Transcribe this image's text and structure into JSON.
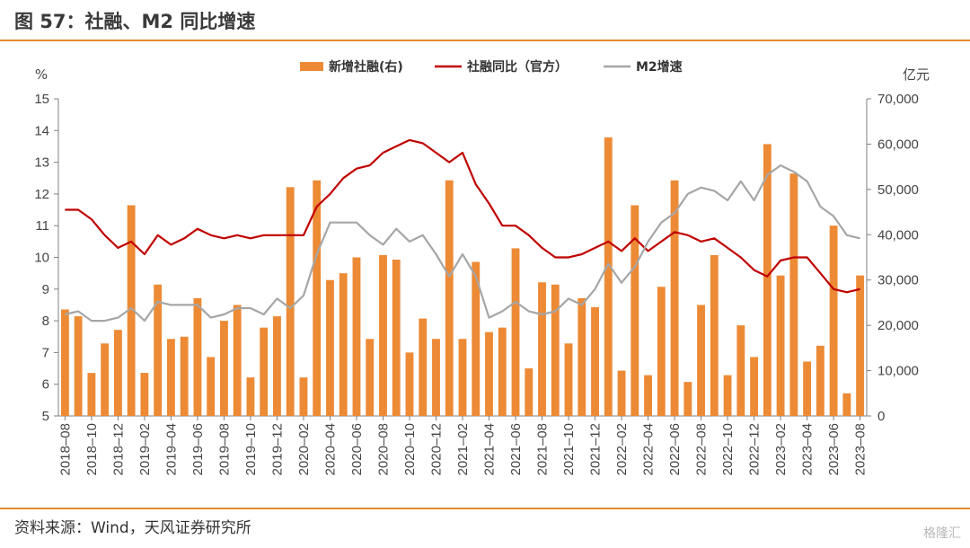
{
  "header": {
    "title": "图 57：社融、M2 同比增速"
  },
  "footer": {
    "source": "资料来源：Wind，天风证券研究所",
    "watermark": "格隆汇"
  },
  "colors": {
    "bars": "#ed8a35",
    "social_financing_line": "#c00000",
    "m2_line": "#a6a6a6",
    "accent_rule": "#e98a2e"
  },
  "chart_data": {
    "type": "bar",
    "left_unit": "%",
    "right_unit": "亿元",
    "left_ylim": [
      5,
      15
    ],
    "left_ticks": [
      "5",
      "6",
      "7",
      "8",
      "9",
      "10",
      "11",
      "12",
      "13",
      "14",
      "15"
    ],
    "right_ylim": [
      0,
      70000
    ],
    "right_ticks": [
      "0",
      "10,000",
      "20,000",
      "30,000",
      "40,000",
      "50,000",
      "60,000",
      "70,000"
    ],
    "x_tick_labels": [
      "2018–08",
      "2018–10",
      "2018–12",
      "2019–02",
      "2019–04",
      "2019–06",
      "2019–08",
      "2019–10",
      "2019–12",
      "2020–02",
      "2020–04",
      "2020–06",
      "2020–08",
      "2020–10",
      "2020–12",
      "2021–02",
      "2021–04",
      "2021–06",
      "2021–08",
      "2021–10",
      "2021–12",
      "2022–02",
      "2022–04",
      "2022–06",
      "2022–08",
      "2022–10",
      "2022–12",
      "2023–02",
      "2023–04",
      "2023–06",
      "2023–08"
    ],
    "categories": [
      "2018-08",
      "2018-09",
      "2018-10",
      "2018-11",
      "2018-12",
      "2019-01",
      "2019-02",
      "2019-03",
      "2019-04",
      "2019-05",
      "2019-06",
      "2019-07",
      "2019-08",
      "2019-09",
      "2019-10",
      "2019-11",
      "2019-12",
      "2020-01",
      "2020-02",
      "2020-03",
      "2020-04",
      "2020-05",
      "2020-06",
      "2020-07",
      "2020-08",
      "2020-09",
      "2020-10",
      "2020-11",
      "2020-12",
      "2021-01",
      "2021-02",
      "2021-03",
      "2021-04",
      "2021-05",
      "2021-06",
      "2021-07",
      "2021-08",
      "2021-09",
      "2021-10",
      "2021-11",
      "2021-12",
      "2022-01",
      "2022-02",
      "2022-03",
      "2022-04",
      "2022-05",
      "2022-06",
      "2022-07",
      "2022-08",
      "2022-09",
      "2022-10",
      "2022-11",
      "2022-12",
      "2023-01",
      "2023-02",
      "2023-03",
      "2023-04",
      "2023-05",
      "2023-06",
      "2023-07",
      "2023-08"
    ],
    "series": [
      {
        "name": "新增社融(右)",
        "type": "bar",
        "axis": "right",
        "values": [
          23500,
          22000,
          9500,
          16000,
          19000,
          46500,
          9500,
          29000,
          17000,
          17500,
          26000,
          13000,
          21000,
          24500,
          8500,
          19500,
          22000,
          50500,
          8500,
          52000,
          30000,
          31500,
          35000,
          17000,
          35500,
          34500,
          14000,
          21500,
          17000,
          52000,
          17000,
          34000,
          18500,
          19500,
          37000,
          10500,
          29500,
          29000,
          16000,
          26000,
          24000,
          61500,
          10000,
          46500,
          9000,
          28500,
          52000,
          7500,
          24500,
          35500,
          9000,
          20000,
          13000,
          60000,
          31000,
          53500,
          12000,
          15500,
          42000,
          5000,
          31000
        ]
      },
      {
        "name": "社融同比（官方）",
        "type": "line",
        "axis": "left",
        "values": [
          11.5,
          11.5,
          11.2,
          10.7,
          10.3,
          10.5,
          10.1,
          10.7,
          10.4,
          10.6,
          10.9,
          10.7,
          10.6,
          10.7,
          10.6,
          10.7,
          10.7,
          10.7,
          10.7,
          11.6,
          12.0,
          12.5,
          12.8,
          12.9,
          13.3,
          13.5,
          13.7,
          13.6,
          13.3,
          13.0,
          13.3,
          12.3,
          11.7,
          11.0,
          11.0,
          10.7,
          10.3,
          10.0,
          10.0,
          10.1,
          10.3,
          10.5,
          10.2,
          10.6,
          10.2,
          10.5,
          10.8,
          10.7,
          10.5,
          10.6,
          10.3,
          10.0,
          9.6,
          9.4,
          9.9,
          10.0,
          10.0,
          9.5,
          9.0,
          8.9,
          9.0
        ]
      },
      {
        "name": "M2增速",
        "type": "line",
        "axis": "left",
        "values": [
          8.2,
          8.3,
          8.0,
          8.0,
          8.1,
          8.4,
          8.0,
          8.6,
          8.5,
          8.5,
          8.5,
          8.1,
          8.2,
          8.4,
          8.4,
          8.2,
          8.7,
          8.4,
          8.8,
          10.1,
          11.1,
          11.1,
          11.1,
          10.7,
          10.4,
          10.9,
          10.5,
          10.7,
          10.1,
          9.4,
          10.1,
          9.4,
          8.1,
          8.3,
          8.6,
          8.3,
          8.2,
          8.3,
          8.7,
          8.5,
          9.0,
          9.8,
          9.2,
          9.7,
          10.5,
          11.1,
          11.4,
          12.0,
          12.2,
          12.1,
          11.8,
          12.4,
          11.8,
          12.6,
          12.9,
          12.7,
          12.4,
          11.6,
          11.3,
          10.7,
          10.6
        ]
      }
    ],
    "legend_position": "top-center",
    "grid": false
  }
}
